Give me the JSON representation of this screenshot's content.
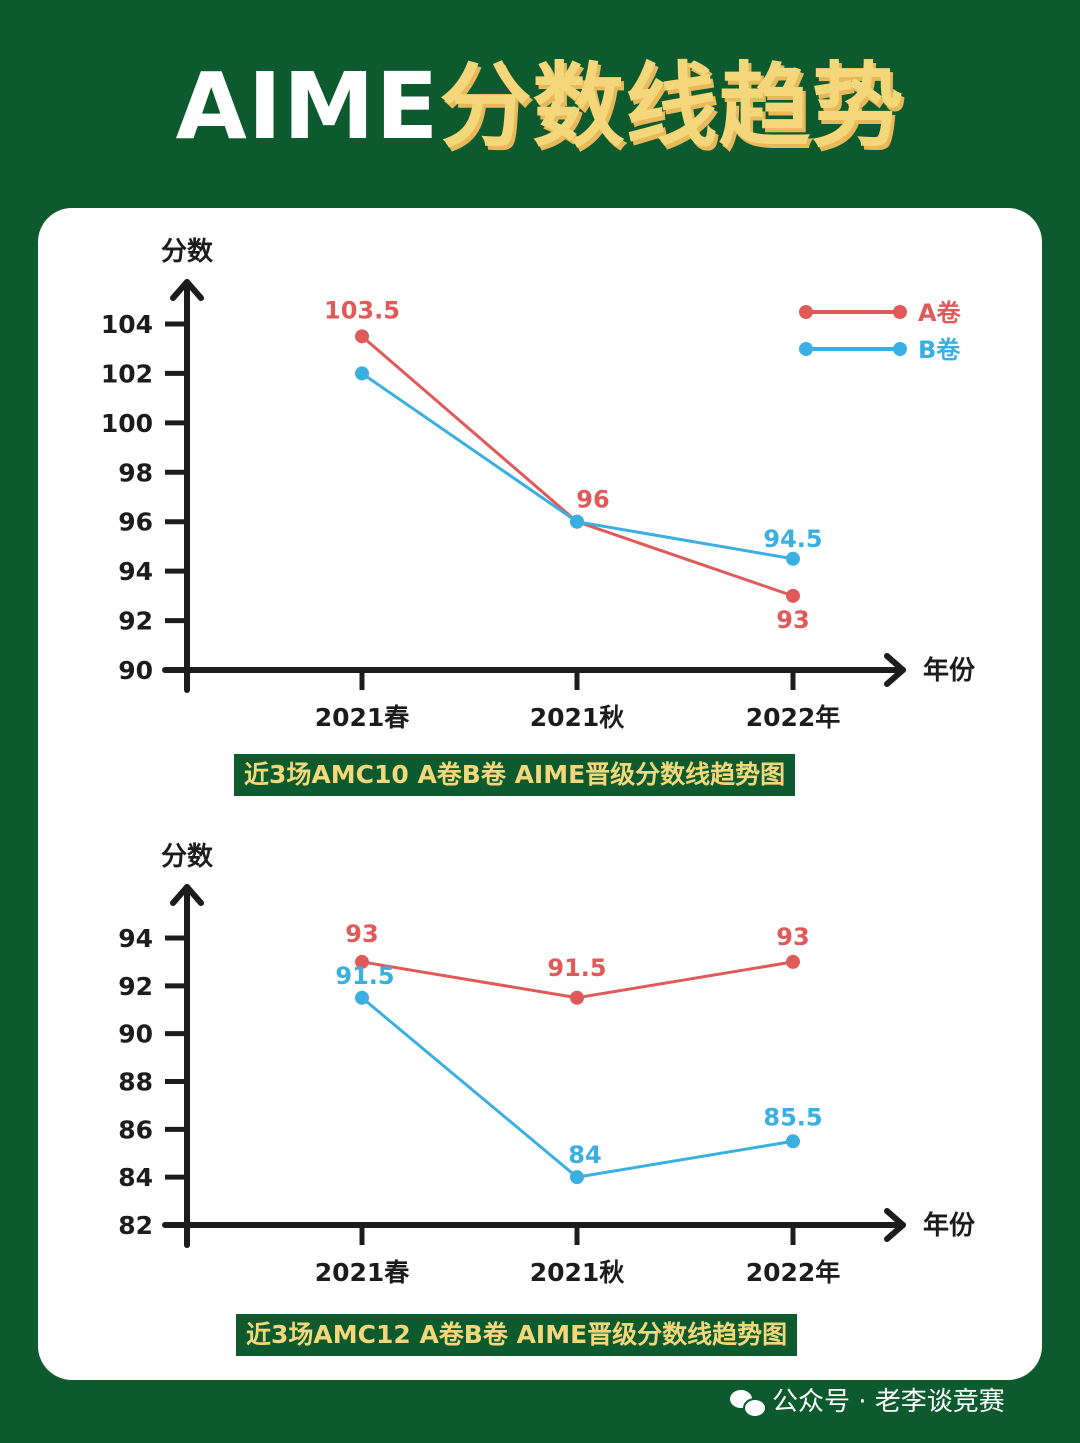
{
  "header": {
    "title_white": "AIME",
    "title_yellow": "分数线趋势"
  },
  "chart_data": [
    {
      "type": "line",
      "title": "近3场AMC10 A卷B卷 AIME晋级分数线趋势图",
      "ylabel": "分数",
      "xlabel": "年份",
      "categories": [
        "2021春",
        "2021秋",
        "2022年"
      ],
      "yticks": [
        "90",
        "92",
        "94",
        "96",
        "98",
        "100",
        "102",
        "104"
      ],
      "ylim": [
        90,
        104
      ],
      "legend_position": "top-right",
      "series": [
        {
          "name": "A卷",
          "color": "#e05a5a",
          "values": [
            103.5,
            96,
            93
          ],
          "labels": [
            "103.5",
            "96",
            "93"
          ]
        },
        {
          "name": "B卷",
          "color": "#3ab0e2",
          "values": [
            102,
            96,
            94.5
          ],
          "labels": [
            "",
            "",
            "94.5"
          ]
        }
      ]
    },
    {
      "type": "line",
      "title": "近3场AMC12 A卷B卷 AIME晋级分数线趋势图",
      "ylabel": "分数",
      "xlabel": "年份",
      "categories": [
        "2021春",
        "2021秋",
        "2022年"
      ],
      "yticks": [
        "82",
        "84",
        "86",
        "88",
        "90",
        "92",
        "94"
      ],
      "ylim": [
        82,
        94
      ],
      "series": [
        {
          "name": "A卷",
          "color": "#e05a5a",
          "values": [
            93,
            91.5,
            93
          ],
          "labels": [
            "93",
            "91.5",
            "93"
          ]
        },
        {
          "name": "B卷",
          "color": "#3ab0e2",
          "values": [
            91.5,
            84,
            85.5
          ],
          "labels": [
            "91.5",
            "84",
            "85.5"
          ]
        }
      ]
    }
  ],
  "watermark": "公众号 · 老李谈竞赛"
}
